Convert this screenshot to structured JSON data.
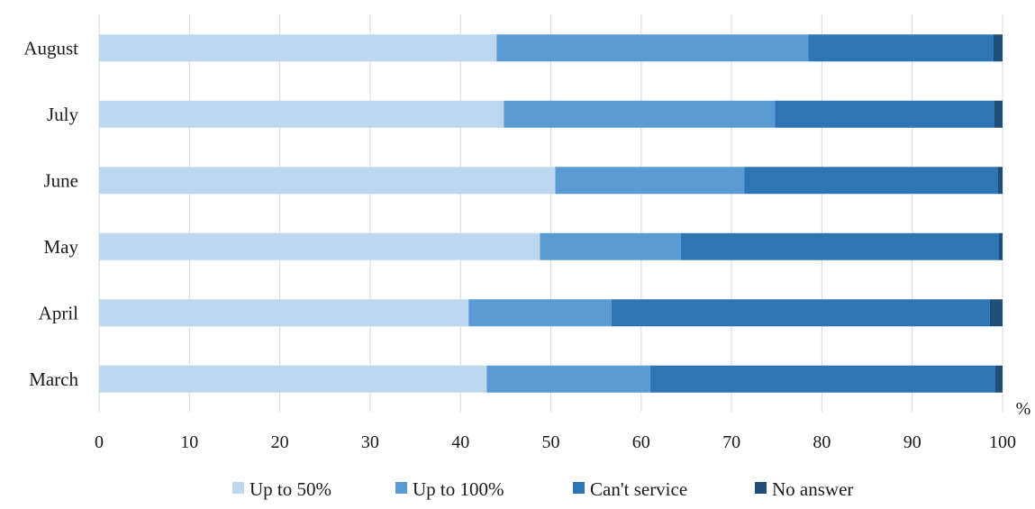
{
  "chart_data": {
    "type": "bar",
    "orientation": "horizontal",
    "stacked": true,
    "categories": [
      "August",
      "July",
      "June",
      "May",
      "April",
      "March"
    ],
    "series": [
      {
        "name": "Up to 50%",
        "color": "#bdd7ee",
        "values": [
          44,
          44.8,
          50.5,
          48.8,
          40.9,
          42.9
        ]
      },
      {
        "name": "Up to 100%",
        "color": "#5b9bd5",
        "values": [
          34.5,
          30,
          20.9,
          15.6,
          15.8,
          18.1
        ]
      },
      {
        "name": "Can't service",
        "color": "#2e75b6",
        "values": [
          20.5,
          24.3,
          28.1,
          35.2,
          41.9,
          38.2
        ]
      },
      {
        "name": "No answer",
        "color": "#1f4e79",
        "values": [
          1,
          0.9,
          0.5,
          0.4,
          1.4,
          0.8
        ]
      }
    ],
    "xlim": [
      0,
      100
    ],
    "xticks": [
      "0",
      "10",
      "20",
      "30",
      "40",
      "50",
      "60",
      "70",
      "80",
      "90",
      "100"
    ],
    "x_unit_label": "%",
    "grid": "vertical",
    "legend_position": "bottom"
  }
}
